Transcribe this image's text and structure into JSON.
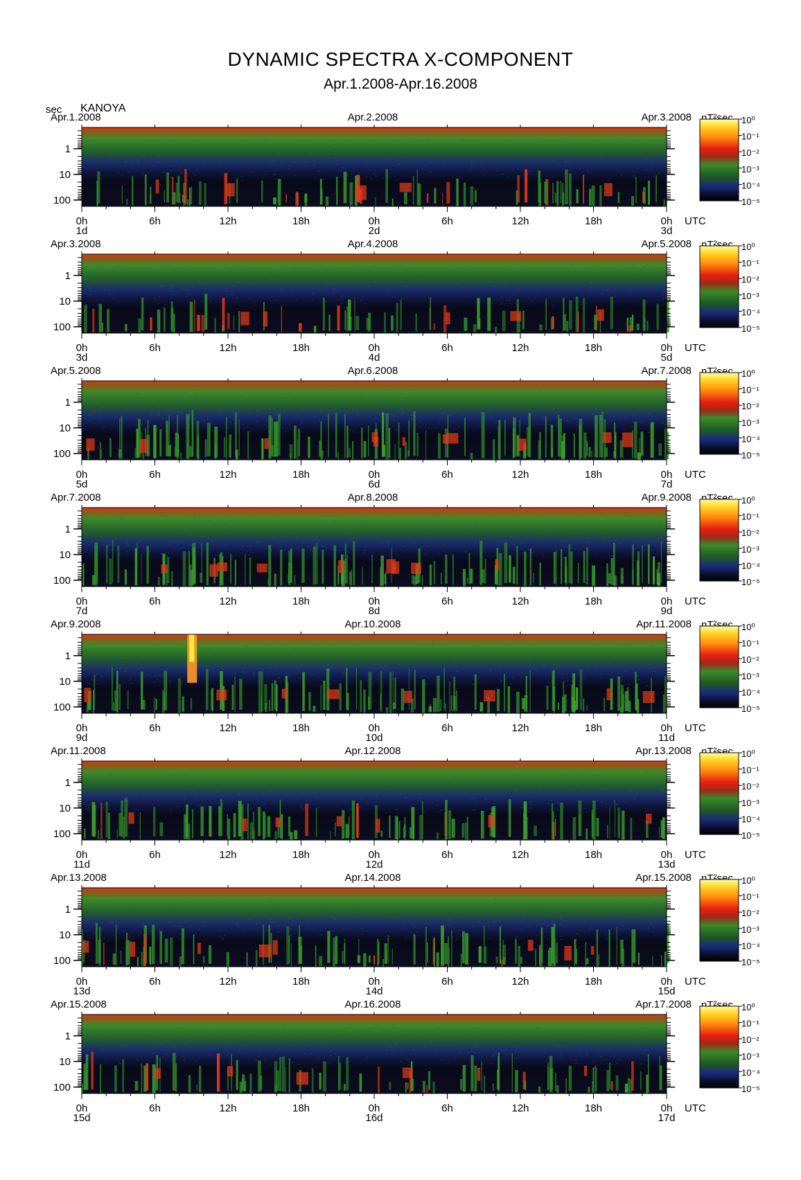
{
  "title": "DYNAMIC SPECTRA X-COMPONENT",
  "subtitle": "Apr.1.2008-Apr.16.2008",
  "y_unit": "sec",
  "station": "KANOYA",
  "colorbar_unit": "nT²sec",
  "colorbar_ticks": [
    "10⁰",
    "10⁻¹",
    "10⁻²",
    "10⁻³",
    "10⁻⁴",
    "10⁻⁵"
  ],
  "colors": {
    "background_low": "#0b0b1e",
    "low": "#1a2a7a",
    "mid": "#2f8a2a",
    "high": "#e83a18",
    "peak": "#ffee44"
  },
  "chart_data": {
    "type": "heatmap",
    "title": "DYNAMIC SPECTRA X-COMPONENT",
    "subtitle": "Apr.1.2008-Apr.16.2008",
    "ylabel": "sec",
    "y_scale": "log",
    "y_ticks": [
      "1",
      "10",
      "100"
    ],
    "x_ticks": [
      "0h",
      "6h",
      "12h",
      "18h",
      "0h",
      "6h",
      "12h",
      "18h",
      "0h"
    ],
    "x_unit": "UTC",
    "colorbar": {
      "label": "nT²sec",
      "scale": "log",
      "range": [
        1e-05,
        1
      ],
      "ticks": [
        "10⁰",
        "10⁻¹",
        "10⁻²",
        "10⁻³",
        "10⁻⁴",
        "10⁻⁵"
      ]
    },
    "panels": [
      {
        "date_left": "Apr.1.2008",
        "date_mid": "Apr.2.2008",
        "date_right": "Apr.3.2008",
        "day_start": "1d",
        "day_mid": "2d",
        "day_end": "3d",
        "activity": 0.35
      },
      {
        "date_left": "Apr.3.2008",
        "date_mid": "Apr.4.2008",
        "date_right": "Apr.5.2008",
        "day_start": "3d",
        "day_mid": "4d",
        "day_end": "5d",
        "activity": 0.35
      },
      {
        "date_left": "Apr.5.2008",
        "date_mid": "Apr.6.2008",
        "date_right": "Apr.7.2008",
        "day_start": "5d",
        "day_mid": "6d",
        "day_end": "7d",
        "activity": 0.75
      },
      {
        "date_left": "Apr.7.2008",
        "date_mid": "Apr.8.2008",
        "date_right": "Apr.9.2008",
        "day_start": "7d",
        "day_mid": "8d",
        "day_end": "9d",
        "activity": 0.65
      },
      {
        "date_left": "Apr.9.2008",
        "date_mid": "Apr.10.2008",
        "date_right": "Apr.11.2008",
        "day_start": "9d",
        "day_mid": "10d",
        "day_end": "11d",
        "activity": 0.6
      },
      {
        "date_left": "Apr.11.2008",
        "date_mid": "Apr.12.2008",
        "date_right": "Apr.13.2008",
        "day_start": "11d",
        "day_mid": "12d",
        "day_end": "13d",
        "activity": 0.5
      },
      {
        "date_left": "Apr.13.2008",
        "date_mid": "Apr.14.2008",
        "date_right": "Apr.15.2008",
        "day_start": "13d",
        "day_mid": "14d",
        "day_end": "15d",
        "activity": 0.55
      },
      {
        "date_left": "Apr.15.2008",
        "date_mid": "Apr.16.2008",
        "date_right": "Apr.17.2008",
        "day_start": "15d",
        "day_mid": "16d",
        "day_end": "17d",
        "activity": 0.45
      }
    ]
  }
}
